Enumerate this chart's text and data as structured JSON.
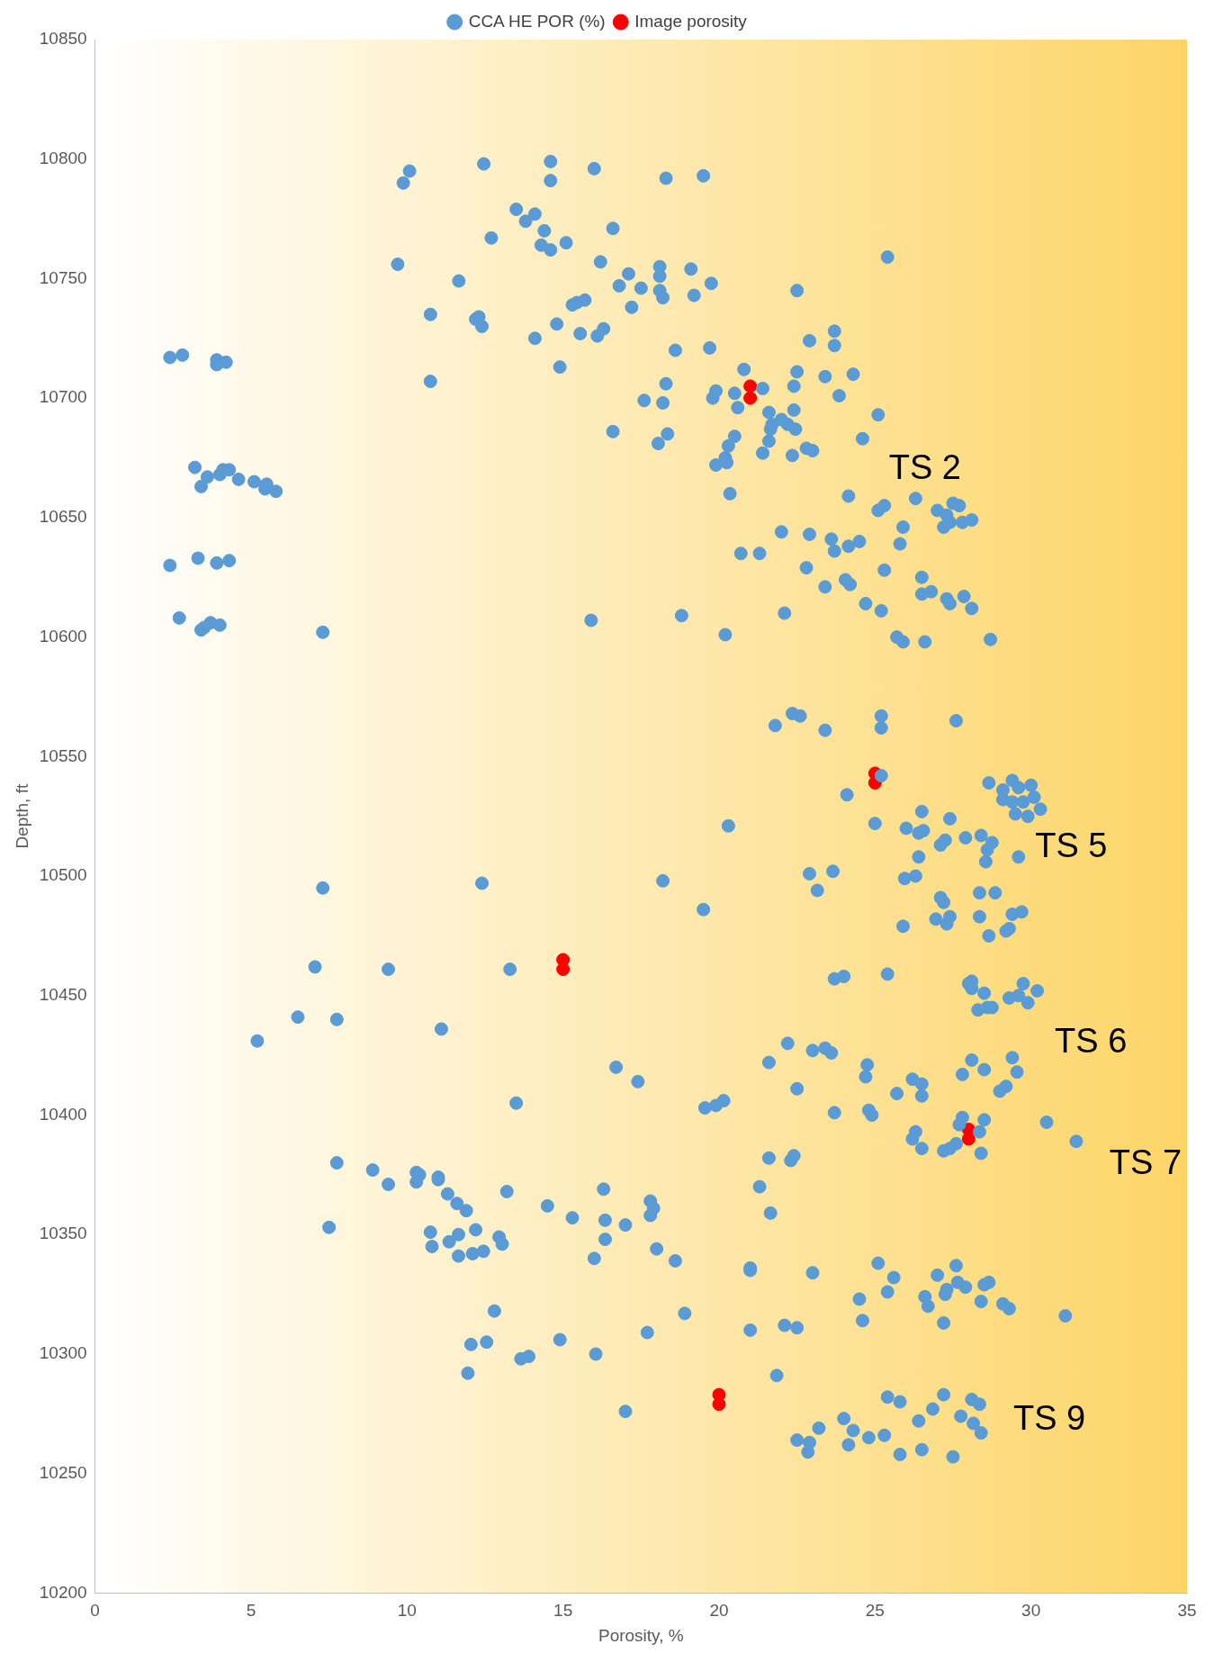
{
  "chart_data": {
    "type": "scatter",
    "xlabel": "Porosity, %",
    "ylabel": "Depth, ft",
    "xlim": [
      0,
      35
    ],
    "xticks": [
      0,
      5,
      10,
      15,
      20,
      25,
      30,
      35
    ],
    "ylim": [
      10200,
      10850
    ],
    "yticks": [
      10200,
      10250,
      10300,
      10350,
      10400,
      10450,
      10500,
      10550,
      10600,
      10650,
      10700,
      10750,
      10800,
      10850
    ],
    "grid": false,
    "legend": "top",
    "marker": "circle",
    "series": [
      {
        "name": "CCA HE POR (%)",
        "color": "#5b9bd5",
        "x": [
          9.88,
          10.08,
          12.46,
          14.6,
          14.6,
          16.0,
          18.3,
          19.5,
          13.5,
          13.8,
          14.1,
          14.4,
          14.3,
          14.6,
          15.1,
          12.7,
          16.6,
          9.7,
          16.2,
          17.1,
          16.8,
          17.5,
          18.1,
          18.1,
          18.1,
          18.2,
          19.1,
          19.75,
          19.2,
          22.5,
          25.4,
          11.66,
          10.75,
          12.2,
          12.3,
          12.4,
          15.3,
          15.45,
          15.7,
          17.2,
          14.8,
          14.1,
          15.55,
          16.3,
          16.1,
          14.9,
          18.6,
          19.7,
          10.75,
          2.4,
          2.8,
          3.9,
          3.9,
          4.2,
          23.7,
          22.9,
          23.7,
          20.8,
          22.5,
          23.4,
          24.3,
          22.4,
          21.4,
          18.3,
          17.6,
          18.2,
          19.9,
          19.8,
          20.5,
          20.6,
          23.85,
          22.4,
          25.1,
          21.6,
          22.0,
          22.2,
          21.7,
          21.65,
          22.45,
          21.6,
          21.4,
          22.35,
          22.8,
          23.0,
          24.6,
          20.5,
          20.3,
          20.2,
          20.25,
          19.9,
          16.6,
          18.35,
          18.05,
          20.35,
          24.15,
          25.3,
          25.1,
          26.3,
          27.0,
          27.5,
          27.7,
          27.3,
          27.4,
          27.2,
          27.8,
          28.1,
          25.9,
          25.8,
          22.0,
          22.9,
          23.6,
          24.5,
          24.15,
          23.7,
          20.7,
          21.3,
          22.8,
          25.3,
          26.5,
          23.4,
          24.05,
          24.2,
          26.8,
          26.5,
          27.3,
          27.4,
          27.85,
          28.1,
          24.7,
          25.2,
          22.1,
          25.7,
          25.9,
          26.6,
          28.7,
          18.8,
          15.9,
          20.2,
          3.2,
          3.4,
          3.6,
          4.0,
          4.1,
          4.3,
          4.6,
          5.1,
          5.5,
          5.45,
          5.8,
          2.4,
          3.3,
          3.9,
          4.3,
          2.7,
          3.4,
          3.5,
          3.7,
          4.0,
          7.3,
          22.35,
          22.6,
          21.8,
          23.4,
          25.2,
          25.2,
          27.6,
          25.2,
          25.0,
          24.1,
          28.65,
          29.1,
          29.4,
          29.6,
          30.0,
          29.1,
          29.4,
          29.75,
          30.1,
          30.3,
          29.5,
          29.9,
          26.5,
          27.4,
          26.0,
          26.4,
          26.55,
          27.9,
          27.1,
          27.25,
          28.4,
          28.75,
          28.6,
          28.55,
          29.6,
          26.4,
          22.9,
          23.65,
          26.3,
          25.95,
          23.15,
          27.1,
          27.2,
          28.35,
          28.85,
          20.3,
          18.2,
          12.4,
          7.3,
          19.5,
          26.95,
          27.4,
          27.3,
          25.9,
          28.35,
          29.4,
          29.7,
          28.65,
          29.2,
          29.3,
          7.05,
          9.4,
          13.3,
          23.7,
          24.0,
          25.4,
          28.0,
          28.1,
          28.1,
          28.5,
          29.75,
          30.2,
          29.9,
          29.6,
          29.3,
          28.75,
          28.6,
          28.3,
          6.5,
          7.75,
          5.2,
          11.1,
          22.2,
          23.0,
          23.4,
          23.6,
          21.6,
          16.7,
          17.4,
          13.5,
          24.75,
          24.7,
          26.2,
          26.5,
          26.5,
          25.7,
          22.5,
          28.1,
          28.5,
          27.8,
          29.4,
          29.55,
          29.2,
          29.0,
          19.55,
          19.9,
          20.15,
          23.7,
          24.8,
          24.9,
          26.3,
          26.2,
          26.5,
          27.8,
          27.7,
          28.5,
          28.35,
          27.2,
          27.4,
          27.6,
          28.4,
          30.5,
          31.45,
          7.75,
          8.9,
          9.4,
          10.3,
          10.4,
          10.3,
          11.0,
          11.0,
          11.3,
          11.6,
          11.9,
          7.5,
          10.75,
          10.8,
          11.35,
          11.65,
          12.2,
          11.65,
          12.1,
          12.45,
          12.95,
          13.05,
          13.2,
          14.5,
          15.3,
          16.3,
          16.35,
          16.35,
          17.0,
          17.8,
          17.9,
          17.8,
          18.0,
          18.6,
          16.0,
          21.3,
          21.6,
          22.3,
          22.4,
          21.65,
          21.0,
          21.0,
          23.0,
          25.1,
          25.6,
          25.4,
          24.5,
          24.6,
          27.0,
          27.6,
          27.3,
          27.25,
          27.65,
          27.9,
          28.5,
          28.65,
          28.4,
          26.6,
          26.7,
          27.2,
          29.1,
          29.3,
          31.1,
          12.8,
          18.9,
          22.1,
          22.5,
          21.0,
          17.7,
          14.9,
          12.05,
          12.55,
          13.65,
          13.9,
          16.05,
          11.95,
          21.85,
          17.0,
          25.4,
          25.8,
          27.2,
          28.1,
          28.35,
          26.85,
          26.4,
          24.0,
          27.75,
          28.15,
          28.4,
          23.2,
          24.3,
          22.5,
          22.9,
          24.15,
          24.8,
          25.3,
          22.85,
          25.8,
          26.5,
          27.5
        ],
        "values": [
          10790,
          10795,
          10798,
          10799,
          10791,
          10796,
          10792,
          10793,
          10779,
          10774,
          10777,
          10770,
          10764,
          10762,
          10765,
          10767,
          10771,
          10756,
          10757,
          10752,
          10747,
          10746,
          10755,
          10751,
          10745,
          10742,
          10754,
          10748,
          10743,
          10745,
          10759,
          10749,
          10735,
          10733,
          10734,
          10730,
          10739,
          10740,
          10741,
          10738,
          10731,
          10725,
          10727,
          10729,
          10726,
          10713,
          10720,
          10721,
          10707,
          10717,
          10718,
          10716,
          10714,
          10715,
          10728,
          10724,
          10722,
          10712,
          10711,
          10709,
          10710,
          10705,
          10704,
          10706,
          10699,
          10698,
          10703,
          10700,
          10702,
          10696,
          10701,
          10695,
          10693,
          10694,
          10691,
          10689,
          10689,
          10687,
          10687,
          10682,
          10677,
          10676,
          10679,
          10678,
          10683,
          10684,
          10680,
          10675,
          10673,
          10672,
          10686,
          10685,
          10681,
          10660,
          10659,
          10655,
          10653,
          10658,
          10653,
          10656,
          10655,
          10651,
          10648,
          10646,
          10648,
          10649,
          10646,
          10639,
          10644,
          10643,
          10641,
          10640,
          10638,
          10636,
          10635,
          10635,
          10629,
          10628,
          10625,
          10621,
          10624,
          10622,
          10619,
          10618,
          10616,
          10614,
          10617,
          10612,
          10614,
          10611,
          10610,
          10600,
          10598,
          10598,
          10599,
          10609,
          10607,
          10601,
          10671,
          10663,
          10667,
          10668,
          10670,
          10670,
          10666,
          10665,
          10664,
          10662,
          10661,
          10630,
          10633,
          10631,
          10632,
          10608,
          10603,
          10604,
          10606,
          10605,
          10602,
          10568,
          10567,
          10563,
          10561,
          10567,
          10562,
          10565,
          10542,
          10522,
          10534,
          10539,
          10536,
          10540,
          10537,
          10538,
          10532,
          10531,
          10531,
          10533,
          10528,
          10526,
          10525,
          10527,
          10524,
          10520,
          10518,
          10519,
          10516,
          10513,
          10515,
          10517,
          10514,
          10511,
          10506,
          10508,
          10508,
          10501,
          10502,
          10500,
          10499,
          10494,
          10491,
          10489,
          10493,
          10493,
          10521,
          10498,
          10497,
          10495,
          10486,
          10482,
          10483,
          10480,
          10479,
          10483,
          10484,
          10485,
          10475,
          10477,
          10478,
          10462,
          10461,
          10461,
          10457,
          10458,
          10459,
          10455,
          10456,
          10453,
          10451,
          10455,
          10452,
          10447,
          10450,
          10449,
          10445,
          10445,
          10444,
          10441,
          10440,
          10431,
          10436,
          10430,
          10427,
          10428,
          10426,
          10422,
          10420,
          10414,
          10405,
          10421,
          10416,
          10415,
          10413,
          10408,
          10409,
          10411,
          10423,
          10419,
          10417,
          10424,
          10418,
          10412,
          10410,
          10403,
          10404,
          10406,
          10401,
          10402,
          10400,
          10393,
          10390,
          10386,
          10399,
          10396,
          10398,
          10393,
          10385,
          10386,
          10388,
          10384,
          10397,
          10389,
          10380,
          10377,
          10371,
          10376,
          10375,
          10372,
          10374,
          10373,
          10367,
          10363,
          10360,
          10353,
          10351,
          10345,
          10347,
          10350,
          10352,
          10341,
          10342,
          10343,
          10349,
          10346,
          10368,
          10362,
          10357,
          10369,
          10356,
          10348,
          10354,
          10364,
          10361,
          10358,
          10344,
          10339,
          10340,
          10370,
          10382,
          10381,
          10383,
          10359,
          10335,
          10336,
          10334,
          10338,
          10332,
          10326,
          10323,
          10314,
          10333,
          10337,
          10327,
          10325,
          10330,
          10328,
          10329,
          10330,
          10322,
          10324,
          10320,
          10313,
          10321,
          10319,
          10316,
          10318,
          10317,
          10312,
          10311,
          10310,
          10309,
          10306,
          10304,
          10305,
          10298,
          10299,
          10300,
          10292,
          10291,
          10276,
          10282,
          10280,
          10283,
          10281,
          10279,
          10277,
          10272,
          10273,
          10274,
          10271,
          10267,
          10269,
          10268,
          10264,
          10263,
          10262,
          10265,
          10266,
          10259,
          10258,
          10260,
          10257
        ]
      },
      {
        "name": "Image porosity",
        "color": "#ff0000",
        "x": [
          21,
          21,
          25,
          25,
          15,
          15,
          28,
          28,
          20,
          20
        ],
        "values": [
          10700,
          10705,
          10539,
          10543,
          10461,
          10465,
          10390,
          10394,
          10279,
          10283
        ]
      }
    ],
    "annotations": [
      "TS 2",
      "TS 5",
      "TS 6",
      "TS 7",
      "TS 9"
    ]
  }
}
